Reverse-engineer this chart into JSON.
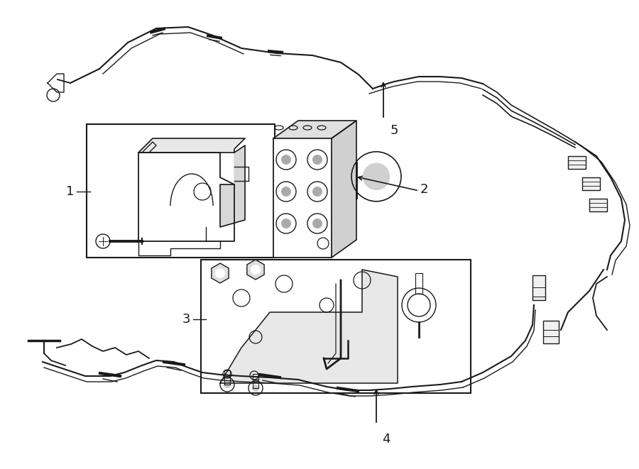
{
  "background_color": "#ffffff",
  "line_color": "#1a1a1a",
  "label_color": "#1a1a1a",
  "fig_width": 9.0,
  "fig_height": 6.61,
  "dpi": 100,
  "xlim": [
    0,
    900
  ],
  "ylim": [
    0,
    661
  ]
}
